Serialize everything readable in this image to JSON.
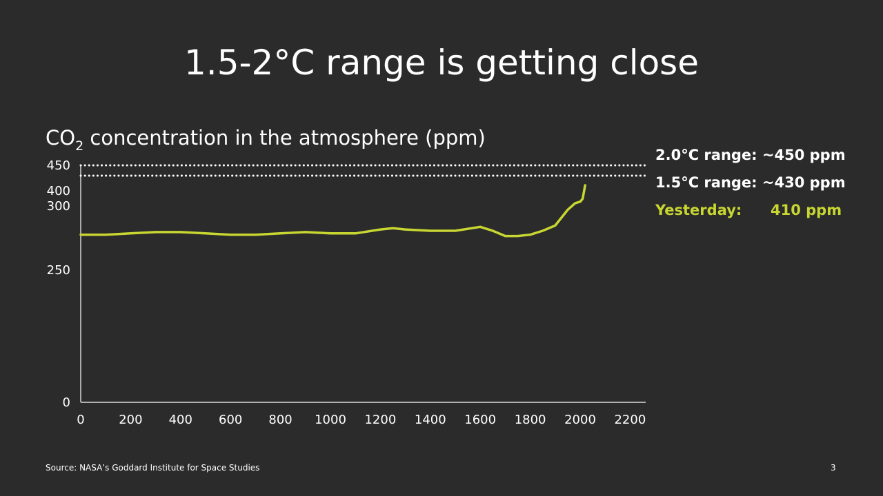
{
  "slide": {
    "title": "1.5-2°C range is getting close",
    "chart_heading_pre": "CO",
    "chart_heading_sub": "2",
    "chart_heading_post": " concentration in the atmosphere (ppm)",
    "source": "Source: NASA’s Goddard Institute for Space Studies",
    "page_number": "3"
  },
  "legend": {
    "line1": "2.0°C range: ~450 ppm",
    "line2": "1.5°C range: ~430 ppm",
    "line3_label": "Yesterday:",
    "line3_value": "410 ppm"
  },
  "colors": {
    "background": "#2b2b2b",
    "series": "#c8d631",
    "text": "#ffffff"
  },
  "chart_data": {
    "type": "line",
    "title": "CO2 concentration in the atmosphere (ppm)",
    "xlabel": "",
    "ylabel": "",
    "x_ticks": [
      "0",
      "200",
      "400",
      "600",
      "800",
      "1000",
      "1200",
      "1400",
      "1600",
      "1800",
      "2000",
      "2200"
    ],
    "y_ticks": [
      "0",
      "250",
      "300",
      "400",
      "450"
    ],
    "axis_scale_note": "non-linear y axis with ticks 0, 250, 300, 400, 450",
    "reference_lines": [
      {
        "value": 450,
        "style": "dotted"
      },
      {
        "value": 430,
        "style": "dotted"
      }
    ],
    "series": [
      {
        "x": [
          0,
          100,
          200,
          300,
          400,
          500,
          600,
          700,
          800,
          900,
          1000,
          1100,
          1200,
          1250,
          1300,
          1400,
          1500,
          1600,
          1650,
          1700,
          1750,
          1800,
          1850,
          1900,
          1950,
          1980,
          2000,
          2010,
          2020
        ],
        "y": [
          277,
          277,
          278,
          279,
          279,
          278,
          277,
          277,
          278,
          279,
          278,
          278,
          281,
          282,
          281,
          280,
          280,
          283,
          280,
          276,
          276,
          277,
          280,
          284,
          296,
          310,
          320,
          340,
          410
        ]
      }
    ]
  }
}
